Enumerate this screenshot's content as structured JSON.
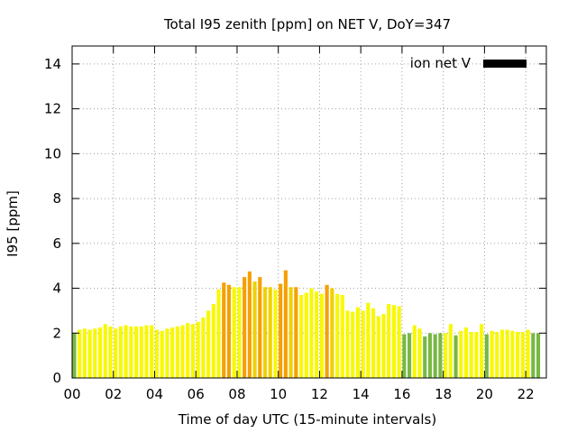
{
  "chart_data": {
    "type": "bar",
    "title": "Total I95 zenith [ppm] on NET V, DoY=347",
    "xlabel": "Time of day UTC (15-minute intervals)",
    "ylabel": "I95 [ppm]",
    "xlim": [
      0,
      23
    ],
    "ylim": [
      0,
      14.8
    ],
    "xtick_labels": [
      "00",
      "02",
      "04",
      "06",
      "08",
      "10",
      "12",
      "14",
      "16",
      "18",
      "20",
      "22"
    ],
    "ytick_labels": [
      "0",
      "2",
      "4",
      "6",
      "8",
      "10",
      "12",
      "14"
    ],
    "grid": true,
    "legend": {
      "label": "ion net V",
      "position": "top-right",
      "color": "#000000"
    },
    "interval_hours": 0.25,
    "colors": {
      "green": "#77b843",
      "yellow": "#f8f800",
      "gold": "#f0d000",
      "orange": "#f5a000"
    },
    "values": [
      2.0,
      2.15,
      2.2,
      2.15,
      2.2,
      2.25,
      2.4,
      2.3,
      2.2,
      2.3,
      2.35,
      2.3,
      2.3,
      2.3,
      2.35,
      2.35,
      2.15,
      2.1,
      2.2,
      2.25,
      2.3,
      2.35,
      2.45,
      2.4,
      2.5,
      2.7,
      3.0,
      3.3,
      3.95,
      4.25,
      4.15,
      4.05,
      4.05,
      4.5,
      4.75,
      4.3,
      4.5,
      4.05,
      4.05,
      3.95,
      4.2,
      4.8,
      4.05,
      4.05,
      3.7,
      3.8,
      4.0,
      3.85,
      3.75,
      4.15,
      4.0,
      3.75,
      3.7,
      3.0,
      2.95,
      3.15,
      3.0,
      3.35,
      3.1,
      2.75,
      2.85,
      3.3,
      3.25,
      3.2,
      1.95,
      2.0,
      2.35,
      2.2,
      1.85,
      2.0,
      1.95,
      2.0,
      2.0,
      2.4,
      1.9,
      2.1,
      2.25,
      2.05,
      2.05,
      2.4,
      1.95,
      2.1,
      2.05,
      2.15,
      2.15,
      2.1,
      2.05,
      2.05,
      2.15,
      2.0,
      2.0
    ],
    "bar_colors": [
      "green",
      "yellow",
      "yellow",
      "yellow",
      "yellow",
      "yellow",
      "yellow",
      "yellow",
      "yellow",
      "yellow",
      "yellow",
      "yellow",
      "yellow",
      "yellow",
      "yellow",
      "yellow",
      "yellow",
      "yellow",
      "yellow",
      "yellow",
      "yellow",
      "yellow",
      "yellow",
      "yellow",
      "yellow",
      "yellow",
      "yellow",
      "yellow",
      "yellow",
      "orange",
      "orange",
      "yellow",
      "yellow",
      "orange",
      "orange",
      "gold",
      "orange",
      "gold",
      "gold",
      "yellow",
      "orange",
      "orange",
      "gold",
      "orange",
      "yellow",
      "yellow",
      "yellow",
      "yellow",
      "yellow",
      "orange",
      "gold",
      "yellow",
      "yellow",
      "yellow",
      "yellow",
      "yellow",
      "yellow",
      "yellow",
      "yellow",
      "yellow",
      "yellow",
      "yellow",
      "yellow",
      "yellow",
      "green",
      "green",
      "yellow",
      "yellow",
      "green",
      "green",
      "green",
      "green",
      "yellow",
      "yellow",
      "green",
      "yellow",
      "yellow",
      "yellow",
      "yellow",
      "yellow",
      "green",
      "yellow",
      "yellow",
      "yellow",
      "yellow",
      "yellow",
      "yellow",
      "yellow",
      "yellow",
      "green",
      "green"
    ]
  }
}
